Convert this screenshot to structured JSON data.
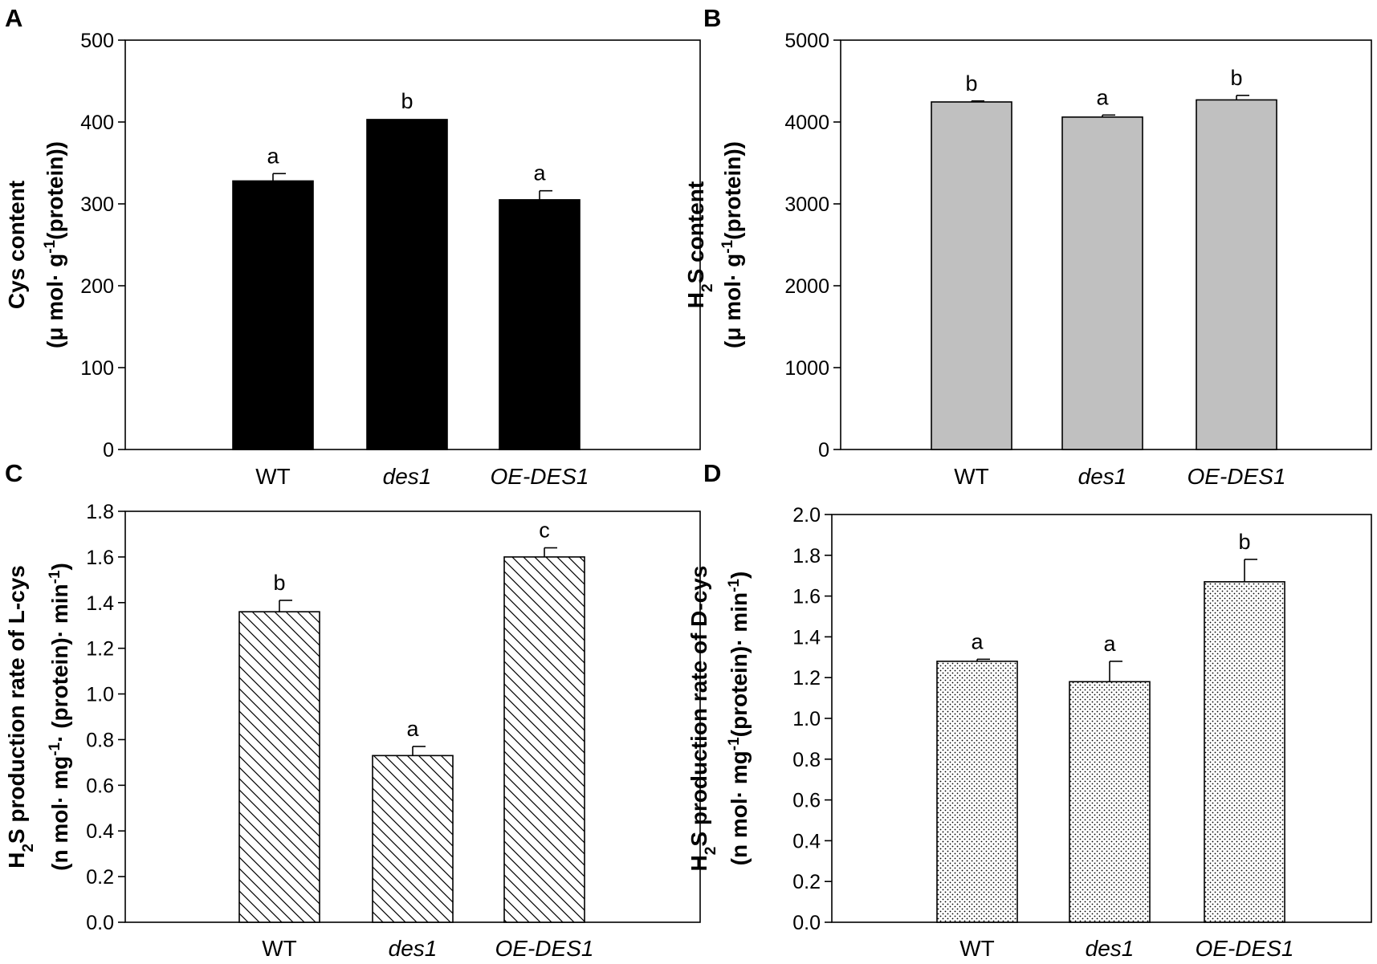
{
  "chart_data": [
    {
      "panel": "A",
      "type": "bar",
      "categories": [
        "WT",
        "des1",
        "OE-DES1"
      ],
      "categories_italic": [
        false,
        true,
        true
      ],
      "values": [
        328,
        403,
        305
      ],
      "errors": [
        9,
        0,
        11
      ],
      "significance": [
        "a",
        "b",
        "a"
      ],
      "ylim": [
        0,
        500
      ],
      "yticks": [
        0,
        100,
        200,
        300,
        400,
        500
      ],
      "ytick_labels": [
        "0",
        "100",
        "200",
        "300",
        "400",
        "500"
      ],
      "ylabel_line1": "Cys content",
      "ylabel_line2": [
        "(μ mol· g",
        "-1",
        "(protein))"
      ],
      "fill": "black",
      "show_category_labels": true
    },
    {
      "panel": "B",
      "type": "bar",
      "categories": [
        "WT",
        "des1",
        "OE-DES1"
      ],
      "categories_italic": [
        false,
        true,
        true
      ],
      "values": [
        4245,
        4060,
        4270
      ],
      "errors": [
        12,
        25,
        55
      ],
      "significance": [
        "b",
        "a",
        "b"
      ],
      "ylim": [
        0,
        5000
      ],
      "yticks": [
        0,
        1000,
        2000,
        3000,
        4000,
        5000
      ],
      "ytick_labels": [
        "0",
        "1000",
        "2000",
        "3000",
        "4000",
        "5000"
      ],
      "ylabel_line1": [
        "H",
        "2",
        "S content"
      ],
      "ylabel_line2": [
        "(μ mol· g",
        "-1",
        "(protein))"
      ],
      "fill": "gray",
      "show_category_labels": true
    },
    {
      "panel": "C",
      "type": "bar",
      "categories": [
        "WT",
        "des1",
        "OE-DES1"
      ],
      "categories_italic": [
        false,
        true,
        true
      ],
      "values": [
        1.36,
        0.73,
        1.6
      ],
      "errors": [
        0.05,
        0.04,
        0.04
      ],
      "significance": [
        "b",
        "a",
        "c"
      ],
      "ylim": [
        0,
        1.8
      ],
      "yticks": [
        0,
        0.2,
        0.4,
        0.6,
        0.8,
        1.0,
        1.2,
        1.4,
        1.6,
        1.8
      ],
      "ytick_labels": [
        "0.0",
        "0.2",
        "0.4",
        "0.6",
        "0.8",
        "1.0",
        "1.2",
        "1.4",
        "1.6",
        "1.8"
      ],
      "ylabel_line1": [
        "H",
        "2",
        "S production rate of L-cys"
      ],
      "ylabel_line2": [
        "(n mol· mg",
        "-1",
        "· (protein)· min",
        "-1",
        ")"
      ],
      "fill": "hatch",
      "show_category_labels": true
    },
    {
      "panel": "D",
      "type": "bar",
      "categories": [
        "WT",
        "des1",
        "OE-DES1"
      ],
      "categories_italic": [
        false,
        true,
        true
      ],
      "values": [
        1.28,
        1.18,
        1.67
      ],
      "errors": [
        0.01,
        0.1,
        0.11
      ],
      "significance": [
        "a",
        "a",
        "b"
      ],
      "ylim": [
        0,
        2.0
      ],
      "yticks": [
        0,
        0.2,
        0.4,
        0.6,
        0.8,
        1.0,
        1.2,
        1.4,
        1.6,
        1.8,
        2.0
      ],
      "ytick_labels": [
        "0.0",
        "0.2",
        "0.4",
        "0.6",
        "0.8",
        "1.0",
        "1.2",
        "1.4",
        "1.6",
        "1.8",
        "2.0"
      ],
      "ylabel_line1": [
        "H",
        "2",
        "S production rate of D-cys"
      ],
      "ylabel_line2": [
        "(n mol· mg",
        "-1",
        "(protein)· min",
        "-1",
        ")"
      ],
      "fill": "dots",
      "show_category_labels": true
    }
  ],
  "colors": {
    "black_bar": "#000000",
    "gray_bar": "#c0c0c0",
    "hatch_line": "#000000",
    "dot_color": "#000000",
    "axis": "#000000"
  }
}
